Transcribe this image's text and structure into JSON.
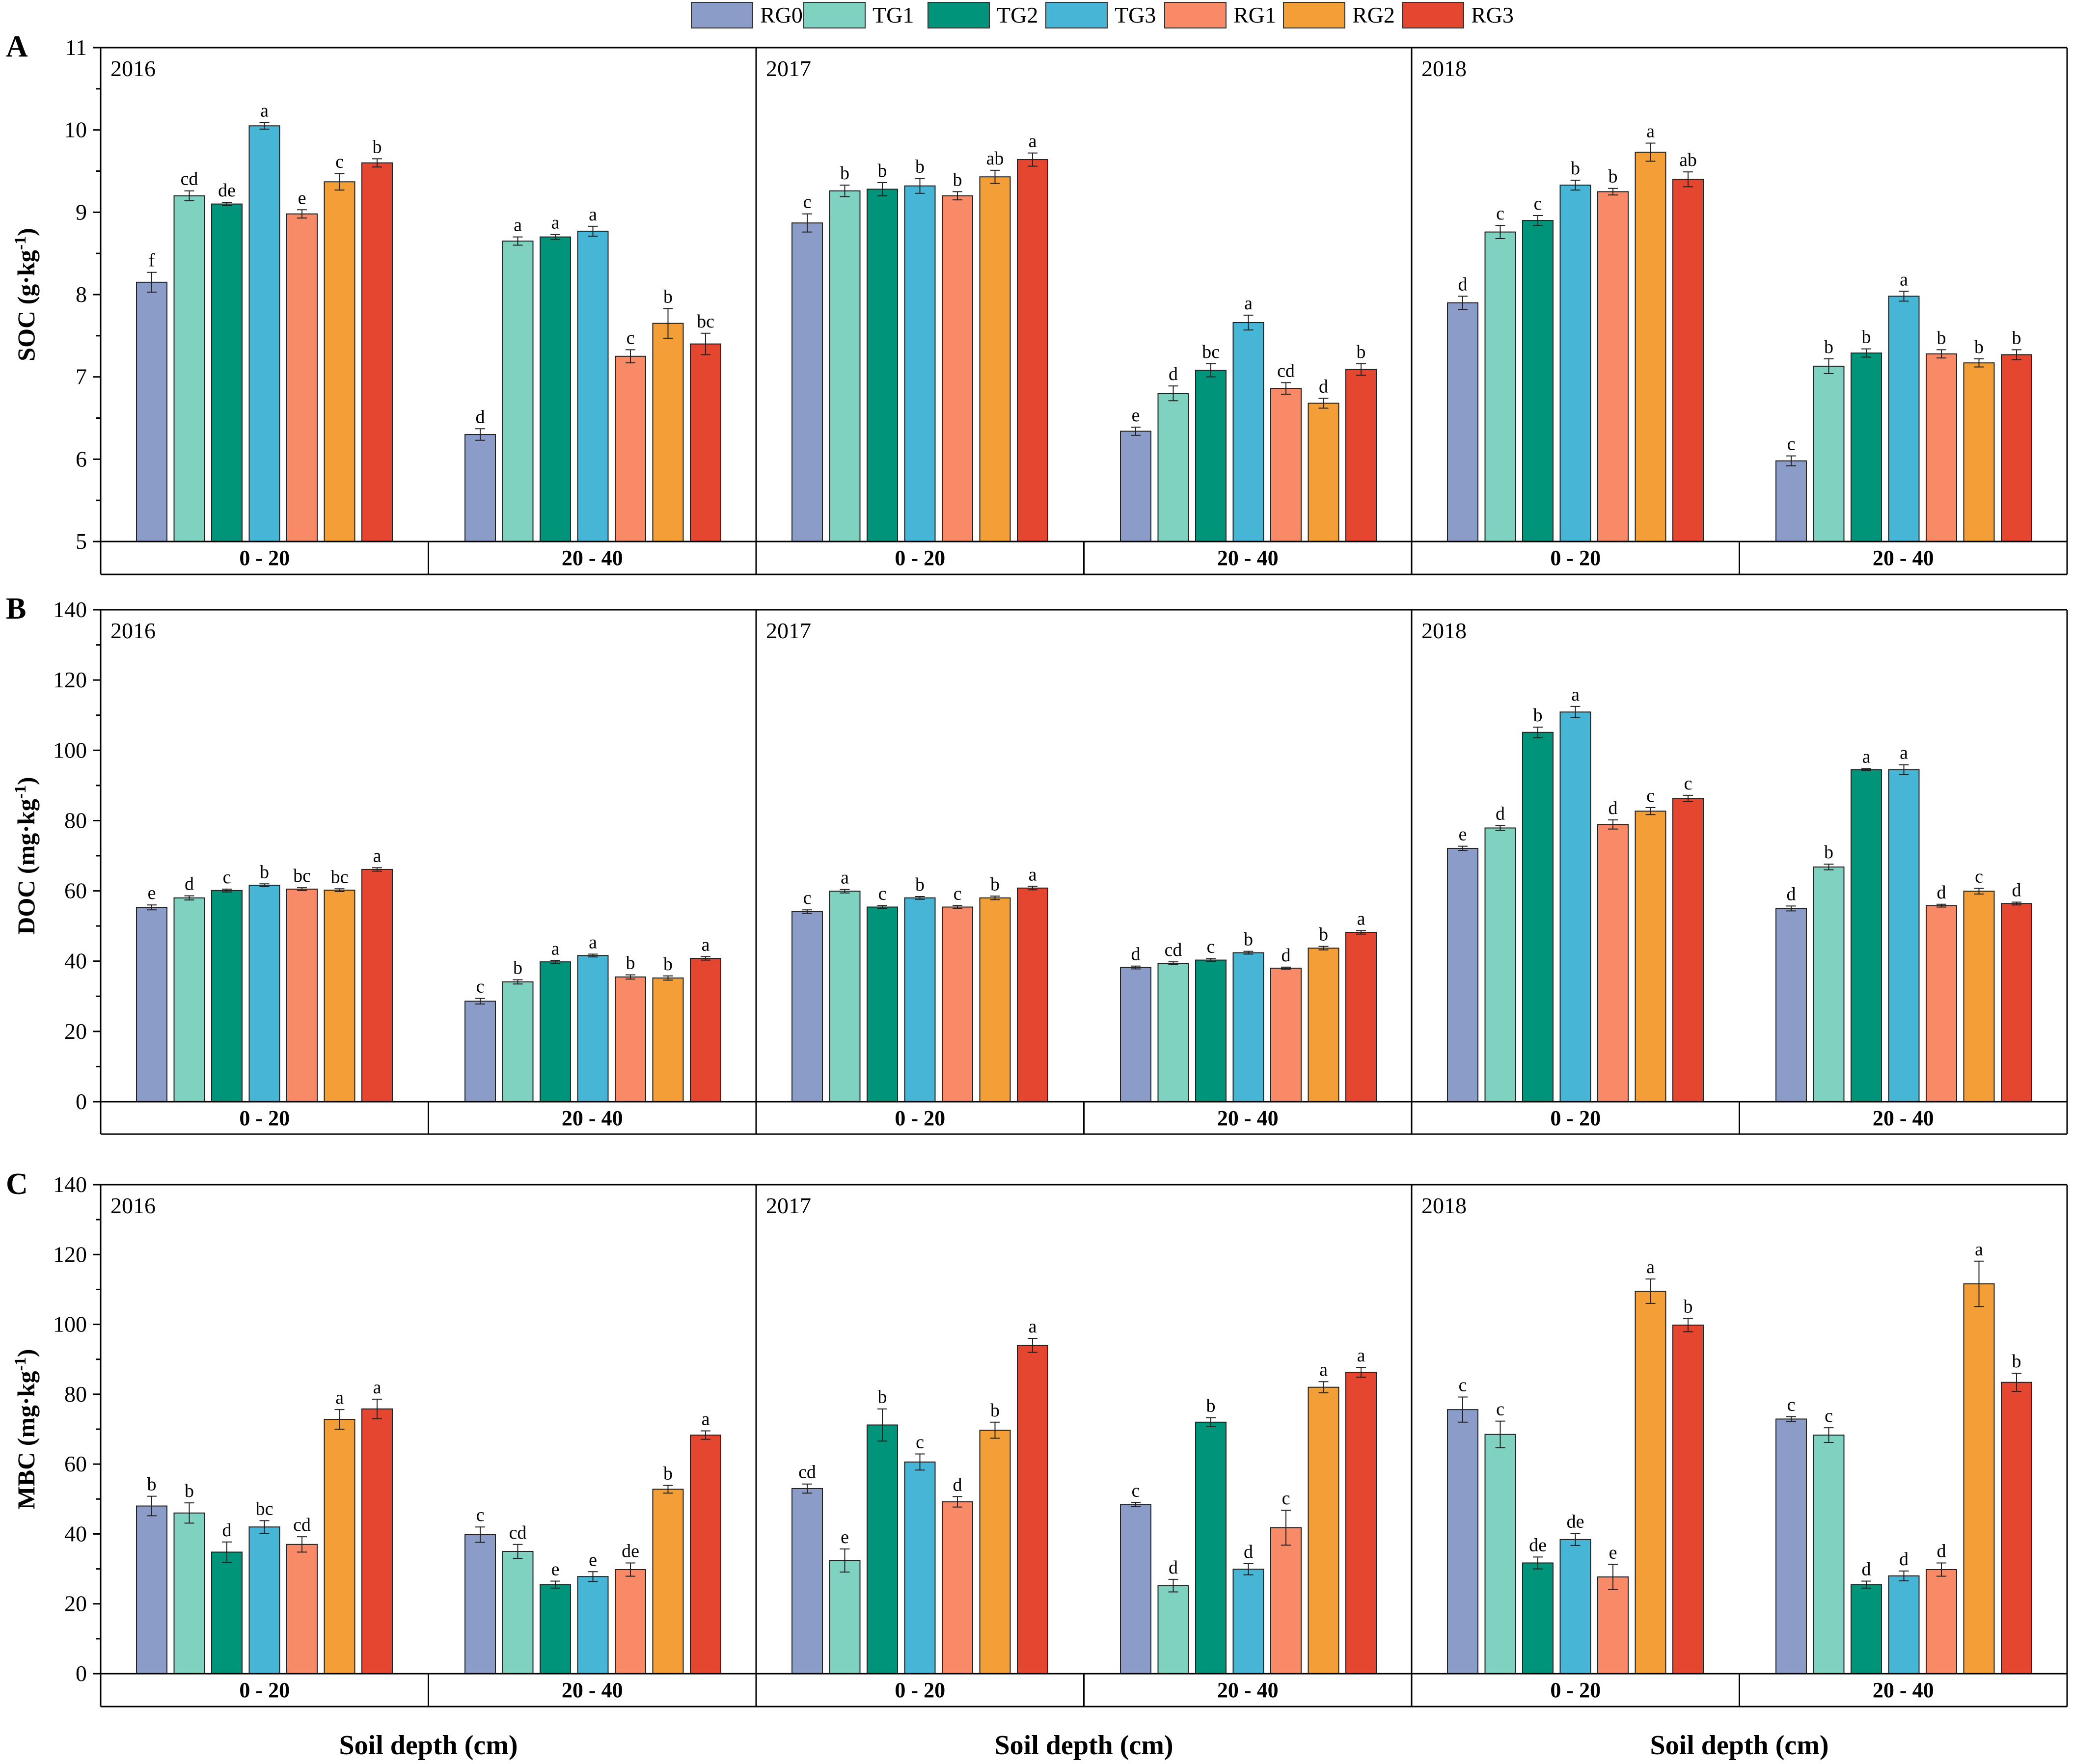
{
  "legend": [
    {
      "name": "RG0",
      "color": "#8C9CC8"
    },
    {
      "name": "TG1",
      "color": "#7FD1C0"
    },
    {
      "name": "TG2",
      "color": "#00957A"
    },
    {
      "name": "TG3",
      "color": "#47B6D6"
    },
    {
      "name": "RG1",
      "color": "#F98A68"
    },
    {
      "name": "RG2",
      "color": "#F39E37"
    },
    {
      "name": "RG3",
      "color": "#E44630"
    }
  ],
  "x_axis_title": "Soil depth (cm)",
  "chart_data": [
    {
      "type": "bar",
      "panel": "A",
      "ylabel": "SOC (g·kg",
      "ylabel_sup": "-1",
      "ylim": [
        5,
        11
      ],
      "yticks": [
        5,
        6,
        7,
        8,
        9,
        10,
        11
      ],
      "categories": [
        "0 - 20",
        "20 - 40"
      ],
      "years": [
        {
          "year": "2016",
          "depth_groups": [
            {
              "depth": "0 - 20",
              "values": [
                8.15,
                9.2,
                9.1,
                10.05,
                8.98,
                9.37,
                9.6
              ],
              "errors": [
                0.12,
                0.06,
                0.02,
                0.04,
                0.05,
                0.1,
                0.05
              ],
              "letters": [
                "f",
                "cd",
                "de",
                "a",
                "e",
                "c",
                "b"
              ]
            },
            {
              "depth": "20 - 40",
              "values": [
                6.3,
                8.65,
                8.7,
                8.77,
                7.25,
                7.65,
                7.4
              ],
              "errors": [
                0.07,
                0.05,
                0.03,
                0.06,
                0.08,
                0.18,
                0.13
              ],
              "letters": [
                "d",
                "a",
                "a",
                "a",
                "c",
                "b",
                "bc"
              ]
            }
          ]
        },
        {
          "year": "2017",
          "depth_groups": [
            {
              "depth": "0 - 20",
              "values": [
                8.87,
                9.26,
                9.28,
                9.32,
                9.2,
                9.43,
                9.64
              ],
              "errors": [
                0.11,
                0.07,
                0.08,
                0.09,
                0.05,
                0.08,
                0.08
              ],
              "letters": [
                "c",
                "b",
                "b",
                "b",
                "b",
                "ab",
                "a"
              ]
            },
            {
              "depth": "20 - 40",
              "values": [
                6.34,
                6.8,
                7.08,
                7.66,
                6.86,
                6.68,
                7.09
              ],
              "errors": [
                0.05,
                0.09,
                0.08,
                0.09,
                0.07,
                0.06,
                0.07
              ],
              "letters": [
                "e",
                "d",
                "bc",
                "a",
                "cd",
                "d",
                "b"
              ]
            }
          ]
        },
        {
          "year": "2018",
          "depth_groups": [
            {
              "depth": "0 - 20",
              "values": [
                7.9,
                8.76,
                8.9,
                9.33,
                9.25,
                9.73,
                9.4
              ],
              "errors": [
                0.08,
                0.08,
                0.06,
                0.06,
                0.04,
                0.11,
                0.09
              ],
              "letters": [
                "d",
                "c",
                "c",
                "b",
                "b",
                "a",
                "ab"
              ]
            },
            {
              "depth": "20 - 40",
              "values": [
                5.98,
                7.13,
                7.29,
                7.98,
                7.28,
                7.17,
                7.27
              ],
              "errors": [
                0.06,
                0.09,
                0.05,
                0.06,
                0.05,
                0.05,
                0.06
              ],
              "letters": [
                "c",
                "b",
                "b",
                "a",
                "b",
                "b",
                "b"
              ]
            }
          ]
        }
      ]
    },
    {
      "type": "bar",
      "panel": "B",
      "ylabel": "DOC (mg·kg",
      "ylabel_sup": "-1",
      "ylim": [
        0,
        140
      ],
      "yticks": [
        0,
        20,
        40,
        60,
        80,
        100,
        120,
        140
      ],
      "categories": [
        "0 - 20",
        "20 - 40"
      ],
      "years": [
        {
          "year": "2016",
          "depth_groups": [
            {
              "depth": "0 - 20",
              "values": [
                55.3,
                58.0,
                60.1,
                61.6,
                60.5,
                60.2,
                66.1
              ],
              "errors": [
                0.7,
                0.6,
                0.4,
                0.4,
                0.4,
                0.4,
                0.5
              ],
              "letters": [
                "e",
                "d",
                "c",
                "b",
                "bc",
                "bc",
                "a"
              ]
            },
            {
              "depth": "20 - 40",
              "values": [
                28.6,
                34.1,
                39.8,
                41.6,
                35.5,
                35.2,
                40.8
              ],
              "errors": [
                0.8,
                0.6,
                0.4,
                0.4,
                0.6,
                0.6,
                0.5
              ],
              "letters": [
                "c",
                "b",
                "a",
                "a",
                "b",
                "b",
                "a"
              ]
            }
          ]
        },
        {
          "year": "2017",
          "depth_groups": [
            {
              "depth": "0 - 20",
              "values": [
                54.1,
                59.9,
                55.4,
                58.0,
                55.4,
                58.0,
                60.8
              ],
              "errors": [
                0.5,
                0.5,
                0.4,
                0.4,
                0.4,
                0.5,
                0.5
              ],
              "letters": [
                "c",
                "a",
                "c",
                "b",
                "c",
                "b",
                "a"
              ]
            },
            {
              "depth": "20 - 40",
              "values": [
                38.2,
                39.4,
                40.3,
                42.4,
                38.0,
                43.7,
                48.2
              ],
              "errors": [
                0.4,
                0.4,
                0.4,
                0.4,
                0.3,
                0.5,
                0.5
              ],
              "letters": [
                "d",
                "cd",
                "c",
                "b",
                "d",
                "b",
                "a"
              ]
            }
          ]
        },
        {
          "year": "2018",
          "depth_groups": [
            {
              "depth": "0 - 20",
              "values": [
                72.1,
                77.9,
                105.1,
                110.9,
                78.9,
                82.7,
                86.3
              ],
              "errors": [
                0.6,
                0.7,
                1.5,
                1.6,
                1.3,
                1.0,
                0.9
              ],
              "letters": [
                "e",
                "d",
                "b",
                "a",
                "d",
                "c",
                "c"
              ]
            },
            {
              "depth": "20 - 40",
              "values": [
                55.0,
                66.8,
                94.5,
                94.5,
                55.8,
                59.9,
                56.4
              ],
              "errors": [
                0.7,
                0.8,
                0.3,
                1.4,
                0.4,
                0.8,
                0.4
              ],
              "letters": [
                "d",
                "b",
                "a",
                "a",
                "d",
                "c",
                "d"
              ]
            }
          ]
        }
      ]
    },
    {
      "type": "bar",
      "panel": "C",
      "ylabel": "MBC (mg·kg",
      "ylabel_sup": "-1",
      "ylim": [
        0,
        140
      ],
      "yticks": [
        0,
        20,
        40,
        60,
        80,
        100,
        120,
        140
      ],
      "categories": [
        "0 - 20",
        "20 - 40"
      ],
      "years": [
        {
          "year": "2016",
          "depth_groups": [
            {
              "depth": "0 - 20",
              "values": [
                48.0,
                46.0,
                34.8,
                42.0,
                37.0,
                72.8,
                75.8
              ],
              "errors": [
                2.8,
                2.9,
                2.9,
                1.8,
                2.2,
                2.8,
                2.8
              ],
              "letters": [
                "b",
                "b",
                "d",
                "bc",
                "cd",
                "a",
                "a"
              ]
            },
            {
              "depth": "20 - 40",
              "values": [
                39.8,
                35.0,
                25.5,
                27.8,
                29.8,
                52.8,
                68.3
              ],
              "errors": [
                2.2,
                2.0,
                1.0,
                1.4,
                1.9,
                1.1,
                1.2
              ],
              "letters": [
                "c",
                "cd",
                "e",
                "e",
                "de",
                "b",
                "a"
              ]
            }
          ]
        },
        {
          "year": "2017",
          "depth_groups": [
            {
              "depth": "0 - 20",
              "values": [
                53.0,
                32.4,
                71.2,
                60.6,
                49.2,
                69.7,
                94.0
              ],
              "errors": [
                1.3,
                3.3,
                4.6,
                2.3,
                1.5,
                2.3,
                2.0
              ],
              "letters": [
                "cd",
                "e",
                "b",
                "c",
                "d",
                "b",
                "a"
              ]
            },
            {
              "depth": "20 - 40",
              "values": [
                48.4,
                25.2,
                72.0,
                29.9,
                41.8,
                82.0,
                86.3
              ],
              "errors": [
                0.6,
                1.8,
                1.3,
                1.6,
                5.0,
                1.6,
                1.4
              ],
              "letters": [
                "c",
                "d",
                "b",
                "d",
                "c",
                "a",
                "a"
              ]
            }
          ]
        },
        {
          "year": "2018",
          "depth_groups": [
            {
              "depth": "0 - 20",
              "values": [
                75.6,
                68.5,
                31.7,
                38.4,
                27.7,
                109.5,
                99.8
              ],
              "errors": [
                3.6,
                3.8,
                1.7,
                1.7,
                3.6,
                3.5,
                1.9
              ],
              "letters": [
                "c",
                "c",
                "de",
                "de",
                "e",
                "a",
                "b"
              ]
            },
            {
              "depth": "20 - 40",
              "values": [
                72.9,
                68.3,
                25.5,
                28.0,
                29.8,
                111.6,
                83.4
              ],
              "errors": [
                0.7,
                2.1,
                1.0,
                1.4,
                1.9,
                6.5,
                2.6
              ],
              "letters": [
                "c",
                "c",
                "d",
                "d",
                "d",
                "a",
                "b"
              ]
            }
          ]
        }
      ]
    }
  ]
}
